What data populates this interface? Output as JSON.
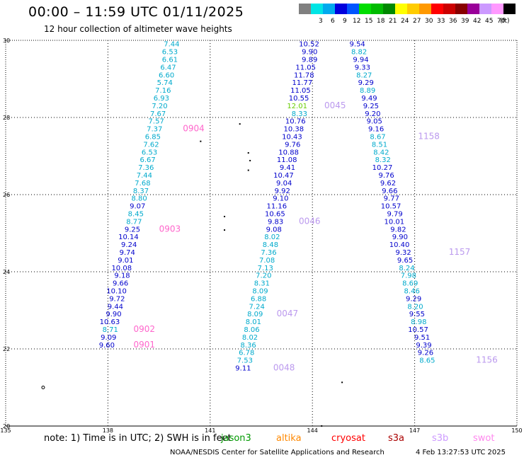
{
  "title": "00:00 – 11:59 UTC 01/11/2025",
  "subtitle": "12 hour collection of altimeter wave heights",
  "legend": {
    "unit": "(ft)",
    "bins": [
      {
        "label": "",
        "color": "#808080"
      },
      {
        "label": "3",
        "color": "#00e5e5"
      },
      {
        "label": "6",
        "color": "#00aaee"
      },
      {
        "label": "9",
        "color": "#0000dd"
      },
      {
        "label": "12",
        "color": "#0055ff"
      },
      {
        "label": "15",
        "color": "#00dd00"
      },
      {
        "label": "18",
        "color": "#00bb00"
      },
      {
        "label": "21",
        "color": "#008800"
      },
      {
        "label": "24",
        "color": "#ffff00"
      },
      {
        "label": "27",
        "color": "#ffcc00"
      },
      {
        "label": "30",
        "color": "#ff9900"
      },
      {
        "label": "33",
        "color": "#ff0000"
      },
      {
        "label": "36",
        "color": "#cc0000"
      },
      {
        "label": "39",
        "color": "#880000"
      },
      {
        "label": "42",
        "color": "#990099"
      },
      {
        "label": "45",
        "color": "#cc99ff"
      },
      {
        "label": "70",
        "color": "#ff99ff"
      },
      {
        "label": "",
        "color": "#000000"
      }
    ]
  },
  "map": {
    "lon_ticks": [
      "135",
      "138",
      "141",
      "144",
      "147",
      "150"
    ],
    "lat_ticks": [
      "30",
      "28",
      "26",
      "24",
      "22",
      "20"
    ],
    "grid_lon": [
      138,
      141,
      144,
      147
    ],
    "grid_lat": [
      28,
      26,
      24,
      22
    ]
  },
  "colors": {
    "cyan": "#00aacc",
    "blue": "#0000cc",
    "green": "#66cc00",
    "env": "#009900",
    "alti": "#ff8800",
    "cryo": "#ff0000",
    "s3a": "#aa0000",
    "s3b": "#cc99ff",
    "swot": "#ff88ee",
    "time_a": "#ff66cc",
    "time_b": "#bb99ee"
  },
  "tracks": [
    {
      "name": "track-a",
      "points": [
        {
          "lon": 140.1,
          "lat": 29.84,
          "v": "7.44",
          "c": "cyan"
        },
        {
          "lon": 140.05,
          "lat": 29.64,
          "v": "6.53",
          "c": "cyan"
        },
        {
          "lon": 140.05,
          "lat": 29.44,
          "v": "6.61",
          "c": "cyan"
        },
        {
          "lon": 140.0,
          "lat": 29.24,
          "v": "6.47",
          "c": "cyan"
        },
        {
          "lon": 139.95,
          "lat": 29.04,
          "v": "6.60",
          "c": "cyan"
        },
        {
          "lon": 139.9,
          "lat": 28.84,
          "v": "5.74",
          "c": "cyan"
        },
        {
          "lon": 139.85,
          "lat": 28.64,
          "v": "7.16",
          "c": "cyan"
        },
        {
          "lon": 139.8,
          "lat": 28.44,
          "v": "6.93",
          "c": "cyan"
        },
        {
          "lon": 139.75,
          "lat": 28.24,
          "v": "7.20",
          "c": "cyan"
        },
        {
          "lon": 139.7,
          "lat": 28.04,
          "v": "7.67",
          "c": "cyan"
        },
        {
          "lon": 139.65,
          "lat": 27.84,
          "v": "7.57",
          "c": "cyan"
        },
        {
          "lon": 139.6,
          "lat": 27.64,
          "v": "7.37",
          "c": "cyan"
        },
        {
          "lon": 139.55,
          "lat": 27.44,
          "v": "6.85",
          "c": "cyan"
        },
        {
          "lon": 139.5,
          "lat": 27.24,
          "v": "7.62",
          "c": "cyan"
        },
        {
          "lon": 139.45,
          "lat": 27.04,
          "v": "6.53",
          "c": "cyan"
        },
        {
          "lon": 139.4,
          "lat": 26.84,
          "v": "6.67",
          "c": "cyan"
        },
        {
          "lon": 139.35,
          "lat": 26.64,
          "v": "7.36",
          "c": "cyan"
        },
        {
          "lon": 139.3,
          "lat": 26.44,
          "v": "7.44",
          "c": "cyan"
        },
        {
          "lon": 139.25,
          "lat": 26.24,
          "v": "7.68",
          "c": "cyan"
        },
        {
          "lon": 139.2,
          "lat": 26.04,
          "v": "8.37",
          "c": "cyan"
        },
        {
          "lon": 139.15,
          "lat": 25.84,
          "v": "8.80",
          "c": "cyan"
        },
        {
          "lon": 139.1,
          "lat": 25.64,
          "v": "9.07",
          "c": "blue"
        },
        {
          "lon": 139.05,
          "lat": 25.44,
          "v": "8.45",
          "c": "cyan"
        },
        {
          "lon": 139.0,
          "lat": 25.24,
          "v": "8.77",
          "c": "cyan"
        },
        {
          "lon": 138.95,
          "lat": 25.04,
          "v": "9.25",
          "c": "blue"
        },
        {
          "lon": 138.9,
          "lat": 24.84,
          "v": "10.14",
          "c": "blue"
        },
        {
          "lon": 138.85,
          "lat": 24.64,
          "v": "9.24",
          "c": "blue"
        },
        {
          "lon": 138.8,
          "lat": 24.44,
          "v": "9.74",
          "c": "blue"
        },
        {
          "lon": 138.75,
          "lat": 24.24,
          "v": "9.01",
          "c": "blue"
        },
        {
          "lon": 138.7,
          "lat": 24.04,
          "v": "10.08",
          "c": "blue"
        },
        {
          "lon": 138.65,
          "lat": 23.84,
          "v": "9.18",
          "c": "blue"
        },
        {
          "lon": 138.6,
          "lat": 23.64,
          "v": "9.66",
          "c": "blue"
        },
        {
          "lon": 138.55,
          "lat": 23.44,
          "v": "10.10",
          "c": "blue"
        },
        {
          "lon": 138.5,
          "lat": 23.24,
          "v": "9.72",
          "c": "blue"
        },
        {
          "lon": 138.45,
          "lat": 23.04,
          "v": "9.44",
          "c": "blue"
        },
        {
          "lon": 138.4,
          "lat": 22.84,
          "v": "9.90",
          "c": "blue"
        },
        {
          "lon": 138.35,
          "lat": 22.64,
          "v": "10.63",
          "c": "blue"
        },
        {
          "lon": 138.3,
          "lat": 22.44,
          "v": "8.71",
          "c": "cyan"
        },
        {
          "lon": 138.25,
          "lat": 22.24,
          "v": "9.09",
          "c": "blue"
        },
        {
          "lon": 138.2,
          "lat": 22.04,
          "v": "9.60",
          "c": "blue"
        }
      ]
    },
    {
      "name": "track-b",
      "points": [
        {
          "lon": 144.2,
          "lat": 29.84,
          "v": "10.52",
          "c": "blue"
        },
        {
          "lon": 144.15,
          "lat": 29.64,
          "v": "9.90",
          "c": "blue"
        },
        {
          "lon": 144.15,
          "lat": 29.44,
          "v": "9.89",
          "c": "blue"
        },
        {
          "lon": 144.1,
          "lat": 29.24,
          "v": "11.05",
          "c": "blue"
        },
        {
          "lon": 144.05,
          "lat": 29.04,
          "v": "11.78",
          "c": "blue"
        },
        {
          "lon": 144.0,
          "lat": 28.84,
          "v": "11.77",
          "c": "blue"
        },
        {
          "lon": 143.95,
          "lat": 28.64,
          "v": "11.05",
          "c": "blue"
        },
        {
          "lon": 143.9,
          "lat": 28.44,
          "v": "10.55",
          "c": "blue"
        },
        {
          "lon": 143.85,
          "lat": 28.24,
          "v": "12.01",
          "c": "green"
        },
        {
          "lon": 143.85,
          "lat": 28.04,
          "v": "8.33",
          "c": "cyan"
        },
        {
          "lon": 143.8,
          "lat": 27.84,
          "v": "10.76",
          "c": "blue"
        },
        {
          "lon": 143.75,
          "lat": 27.64,
          "v": "10.38",
          "c": "blue"
        },
        {
          "lon": 143.7,
          "lat": 27.44,
          "v": "10.43",
          "c": "blue"
        },
        {
          "lon": 143.65,
          "lat": 27.24,
          "v": "9.76",
          "c": "blue"
        },
        {
          "lon": 143.6,
          "lat": 27.04,
          "v": "10.88",
          "c": "blue"
        },
        {
          "lon": 143.55,
          "lat": 26.84,
          "v": "11.08",
          "c": "blue"
        },
        {
          "lon": 143.5,
          "lat": 26.64,
          "v": "9.41",
          "c": "blue"
        },
        {
          "lon": 143.45,
          "lat": 26.44,
          "v": "10.47",
          "c": "blue"
        },
        {
          "lon": 143.4,
          "lat": 26.24,
          "v": "9.04",
          "c": "blue"
        },
        {
          "lon": 143.35,
          "lat": 26.04,
          "v": "9.92",
          "c": "blue"
        },
        {
          "lon": 143.3,
          "lat": 25.84,
          "v": "9.10",
          "c": "blue"
        },
        {
          "lon": 143.25,
          "lat": 25.64,
          "v": "11.16",
          "c": "blue"
        },
        {
          "lon": 143.2,
          "lat": 25.44,
          "v": "10.65",
          "c": "blue"
        },
        {
          "lon": 143.15,
          "lat": 25.24,
          "v": "9.83",
          "c": "blue"
        },
        {
          "lon": 143.1,
          "lat": 25.04,
          "v": "9.08",
          "c": "blue"
        },
        {
          "lon": 143.05,
          "lat": 24.84,
          "v": "8.02",
          "c": "cyan"
        },
        {
          "lon": 143.0,
          "lat": 24.64,
          "v": "8.48",
          "c": "cyan"
        },
        {
          "lon": 142.95,
          "lat": 24.44,
          "v": "7.36",
          "c": "cyan"
        },
        {
          "lon": 142.9,
          "lat": 24.24,
          "v": "7.08",
          "c": "cyan"
        },
        {
          "lon": 142.85,
          "lat": 24.04,
          "v": "7.13",
          "c": "cyan"
        },
        {
          "lon": 142.8,
          "lat": 23.84,
          "v": "7.20",
          "c": "cyan"
        },
        {
          "lon": 142.75,
          "lat": 23.64,
          "v": "8.31",
          "c": "cyan"
        },
        {
          "lon": 142.7,
          "lat": 23.44,
          "v": "8.09",
          "c": "cyan"
        },
        {
          "lon": 142.65,
          "lat": 23.24,
          "v": "6.88",
          "c": "cyan"
        },
        {
          "lon": 142.6,
          "lat": 23.04,
          "v": "7.24",
          "c": "cyan"
        },
        {
          "lon": 142.55,
          "lat": 22.84,
          "v": "8.09",
          "c": "cyan"
        },
        {
          "lon": 142.5,
          "lat": 22.64,
          "v": "8.01",
          "c": "cyan"
        },
        {
          "lon": 142.45,
          "lat": 22.44,
          "v": "8.06",
          "c": "cyan"
        },
        {
          "lon": 142.4,
          "lat": 22.24,
          "v": "8.02",
          "c": "cyan"
        },
        {
          "lon": 142.35,
          "lat": 22.04,
          "v": "8.36",
          "c": "cyan"
        },
        {
          "lon": 142.3,
          "lat": 21.84,
          "v": "6.78",
          "c": "cyan"
        },
        {
          "lon": 142.25,
          "lat": 21.64,
          "v": "7.53",
          "c": "cyan"
        },
        {
          "lon": 142.2,
          "lat": 21.44,
          "v": "9.11",
          "c": "blue"
        }
      ]
    },
    {
      "name": "track-c",
      "points": [
        {
          "lon": 145.55,
          "lat": 29.84,
          "v": "9.54",
          "c": "blue"
        },
        {
          "lon": 145.6,
          "lat": 29.64,
          "v": "8.82",
          "c": "cyan"
        },
        {
          "lon": 145.65,
          "lat": 29.44,
          "v": "9.94",
          "c": "blue"
        },
        {
          "lon": 145.7,
          "lat": 29.24,
          "v": "9.33",
          "c": "blue"
        },
        {
          "lon": 145.75,
          "lat": 29.04,
          "v": "8.27",
          "c": "cyan"
        },
        {
          "lon": 145.8,
          "lat": 28.84,
          "v": "9.29",
          "c": "blue"
        },
        {
          "lon": 145.85,
          "lat": 28.64,
          "v": "8.89",
          "c": "cyan"
        },
        {
          "lon": 145.9,
          "lat": 28.44,
          "v": "9.49",
          "c": "blue"
        },
        {
          "lon": 145.95,
          "lat": 28.24,
          "v": "9.25",
          "c": "blue"
        },
        {
          "lon": 146.0,
          "lat": 28.04,
          "v": "9.20",
          "c": "blue"
        },
        {
          "lon": 146.05,
          "lat": 27.84,
          "v": "9.05",
          "c": "blue"
        },
        {
          "lon": 146.1,
          "lat": 27.64,
          "v": "9.16",
          "c": "blue"
        },
        {
          "lon": 146.15,
          "lat": 27.44,
          "v": "8.67",
          "c": "cyan"
        },
        {
          "lon": 146.2,
          "lat": 27.24,
          "v": "8.51",
          "c": "cyan"
        },
        {
          "lon": 146.25,
          "lat": 27.04,
          "v": "8.42",
          "c": "cyan"
        },
        {
          "lon": 146.3,
          "lat": 26.84,
          "v": "8.32",
          "c": "cyan"
        },
        {
          "lon": 146.35,
          "lat": 26.64,
          "v": "10.27",
          "c": "blue"
        },
        {
          "lon": 146.4,
          "lat": 26.44,
          "v": "9.76",
          "c": "blue"
        },
        {
          "lon": 146.45,
          "lat": 26.24,
          "v": "9.62",
          "c": "blue"
        },
        {
          "lon": 146.5,
          "lat": 26.04,
          "v": "9.66",
          "c": "blue"
        },
        {
          "lon": 146.55,
          "lat": 25.84,
          "v": "9.77",
          "c": "blue"
        },
        {
          "lon": 146.6,
          "lat": 25.64,
          "v": "10.57",
          "c": "blue"
        },
        {
          "lon": 146.65,
          "lat": 25.44,
          "v": "9.79",
          "c": "blue"
        },
        {
          "lon": 146.7,
          "lat": 25.24,
          "v": "10.01",
          "c": "blue"
        },
        {
          "lon": 146.75,
          "lat": 25.04,
          "v": "9.82",
          "c": "blue"
        },
        {
          "lon": 146.8,
          "lat": 24.84,
          "v": "9.90",
          "c": "blue"
        },
        {
          "lon": 146.85,
          "lat": 24.64,
          "v": "10.40",
          "c": "blue"
        },
        {
          "lon": 146.9,
          "lat": 24.44,
          "v": "9.32",
          "c": "blue"
        },
        {
          "lon": 146.95,
          "lat": 24.24,
          "v": "9.65",
          "c": "blue"
        },
        {
          "lon": 147.0,
          "lat": 24.04,
          "v": "8.24",
          "c": "cyan"
        },
        {
          "lon": 147.05,
          "lat": 23.84,
          "v": "7.98",
          "c": "cyan"
        },
        {
          "lon": 147.1,
          "lat": 23.64,
          "v": "8.69",
          "c": "cyan"
        },
        {
          "lon": 147.15,
          "lat": 23.44,
          "v": "8.46",
          "c": "cyan"
        },
        {
          "lon": 147.2,
          "lat": 23.24,
          "v": "9.29",
          "c": "blue"
        },
        {
          "lon": 147.25,
          "lat": 23.04,
          "v": "8.20",
          "c": "cyan"
        },
        {
          "lon": 147.3,
          "lat": 22.84,
          "v": "9.55",
          "c": "blue"
        },
        {
          "lon": 147.35,
          "lat": 22.64,
          "v": "8.98",
          "c": "cyan"
        },
        {
          "lon": 147.4,
          "lat": 22.44,
          "v": "10.57",
          "c": "blue"
        },
        {
          "lon": 147.45,
          "lat": 22.24,
          "v": "9.51",
          "c": "blue"
        },
        {
          "lon": 147.5,
          "lat": 22.04,
          "v": "9.39",
          "c": "blue"
        },
        {
          "lon": 147.55,
          "lat": 21.84,
          "v": "9.26",
          "c": "blue"
        },
        {
          "lon": 147.6,
          "lat": 21.64,
          "v": "8.65",
          "c": "cyan"
        }
      ]
    }
  ],
  "time_labels": [
    {
      "lon": 140.2,
      "lat": 27.64,
      "text": "0904",
      "c": "time_a"
    },
    {
      "lon": 139.5,
      "lat": 25.04,
      "text": "0903",
      "c": "time_a"
    },
    {
      "lon": 138.75,
      "lat": 22.44,
      "text": "0902",
      "c": "time_a"
    },
    {
      "lon": 138.75,
      "lat": 22.04,
      "text": "0901",
      "c": "time_a"
    },
    {
      "lon": 144.35,
      "lat": 28.24,
      "text": "0045",
      "c": "time_b"
    },
    {
      "lon": 143.6,
      "lat": 25.24,
      "text": "0046",
      "c": "time_b"
    },
    {
      "lon": 142.95,
      "lat": 22.84,
      "text": "0047",
      "c": "time_b"
    },
    {
      "lon": 142.85,
      "lat": 21.44,
      "text": "0048",
      "c": "time_b"
    },
    {
      "lon": 147.1,
      "lat": 27.44,
      "text": "1158",
      "c": "time_b"
    },
    {
      "lon": 148.0,
      "lat": 24.44,
      "text": "1157",
      "c": "time_b"
    },
    {
      "lon": 148.8,
      "lat": 21.64,
      "text": "1156",
      "c": "time_b"
    }
  ],
  "note": {
    "prefix": "note:  1) Time is in UTC;  2) SWH is in feet",
    "sats": [
      {
        "text": "jason3",
        "c": "env"
      },
      {
        "text": "altika",
        "c": "alti"
      },
      {
        "text": "cryosat",
        "c": "cryo"
      },
      {
        "text": "s3a",
        "c": "s3a"
      },
      {
        "text": "s3b",
        "c": "s3b"
      },
      {
        "text": "swot",
        "c": "swot"
      }
    ]
  },
  "footer": {
    "source": "NOAA/NESDIS Center for Satellite Applications and Research",
    "timestamp": "4 Feb 13:27:53 UTC 2025"
  }
}
